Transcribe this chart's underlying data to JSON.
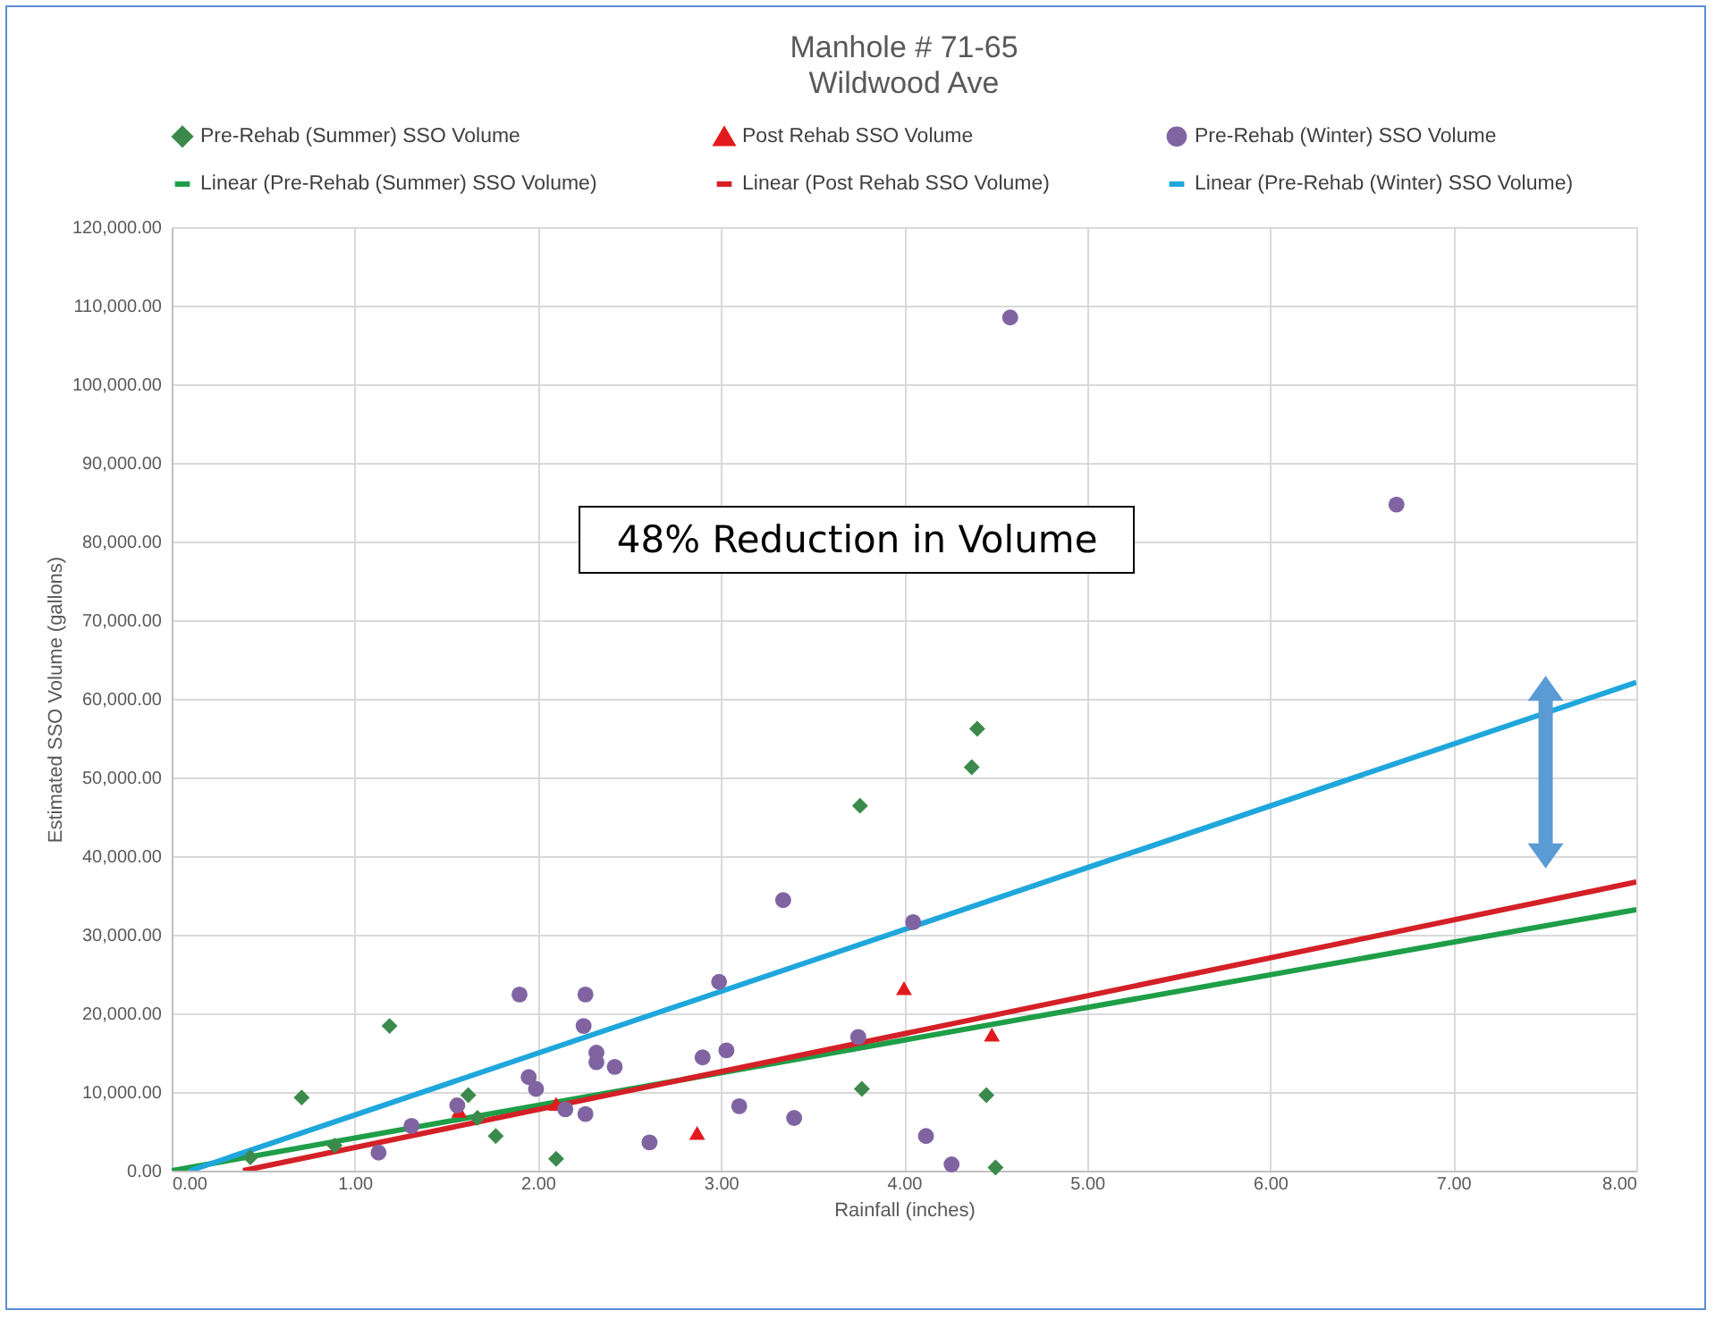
{
  "chart_data": {
    "type": "scatter",
    "title": "Manhole # 71-65",
    "subtitle": "Wildwood Ave",
    "xlabel": "Rainfall (inches)",
    "ylabel": "Estimated SSO Volume (gallons)",
    "xlim": [
      0,
      8
    ],
    "xticks": [
      {
        "value": 0,
        "label": "0.00"
      },
      {
        "value": 1,
        "label": "1.00"
      },
      {
        "value": 2,
        "label": "2.00"
      },
      {
        "value": 3,
        "label": "3.00"
      },
      {
        "value": 4,
        "label": "4.00"
      },
      {
        "value": 5,
        "label": "5.00"
      },
      {
        "value": 6,
        "label": "6.00"
      },
      {
        "value": 7,
        "label": "7.00"
      },
      {
        "value": 8,
        "label": "8.00"
      }
    ],
    "ylim": [
      0,
      120000
    ],
    "yticks": [
      {
        "value": 0,
        "label": "0.00"
      },
      {
        "value": 10000,
        "label": "10,000.00"
      },
      {
        "value": 20000,
        "label": "20,000.00"
      },
      {
        "value": 30000,
        "label": "30,000.00"
      },
      {
        "value": 40000,
        "label": "40,000.00"
      },
      {
        "value": 50000,
        "label": "50,000.00"
      },
      {
        "value": 60000,
        "label": "60,000.00"
      },
      {
        "value": 70000,
        "label": "70,000.00"
      },
      {
        "value": 80000,
        "label": "80,000.00"
      },
      {
        "value": 90000,
        "label": "90,000.00"
      },
      {
        "value": 100000,
        "label": "100,000.00"
      },
      {
        "value": 110000,
        "label": "110,000.00"
      },
      {
        "value": 120000,
        "label": "120,000.00"
      }
    ],
    "grid": true,
    "legend": "top",
    "annotations": [
      "48% Reduction in Volume"
    ],
    "series": [
      {
        "name": "Pre-Rehab (Summer) SSO Volume",
        "type": "scatter",
        "marker": "diamond",
        "color": "#3b8a4c",
        "x": [
          0.43,
          0.71,
          0.89,
          1.19,
          1.62,
          1.67,
          1.77,
          2.1,
          3.76,
          3.77,
          4.37,
          4.4,
          4.45,
          4.5
        ],
        "values": [
          1700,
          9300,
          3200,
          18400,
          9600,
          6700,
          4400,
          1500,
          46400,
          10400,
          51300,
          56200,
          9600,
          400
        ]
      },
      {
        "name": "Post Rehab SSO Volume",
        "type": "scatter",
        "marker": "triangle",
        "color": "#e31a1c",
        "x": [
          1.57,
          2.1,
          2.87,
          4.0,
          4.48
        ],
        "values": [
          7600,
          8500,
          4800,
          23200,
          17300
        ]
      },
      {
        "name": "Pre-Rehab (Winter) SSO Volume",
        "type": "scatter",
        "marker": "circle",
        "color": "#8064a2",
        "x": [
          1.13,
          1.31,
          1.56,
          1.9,
          1.95,
          1.99,
          2.15,
          2.25,
          2.26,
          2.26,
          2.32,
          2.32,
          2.42,
          2.61,
          2.9,
          2.99,
          3.03,
          3.1,
          3.34,
          3.4,
          3.75,
          4.05,
          4.12,
          4.26,
          4.58,
          6.69
        ],
        "values": [
          2300,
          5700,
          8300,
          22400,
          11900,
          10400,
          7800,
          18400,
          22400,
          7200,
          15000,
          13800,
          13200,
          3600,
          14400,
          24000,
          15300,
          8200,
          34400,
          6700,
          17000,
          31600,
          4400,
          800,
          108500,
          84700
        ]
      },
      {
        "name": "Linear (Pre-Rehab (Summer) SSO Volume)",
        "type": "line",
        "color": "#1f9e48",
        "x": [
          0,
          8
        ],
        "values": [
          0,
          33200
        ]
      },
      {
        "name": "Linear (Post Rehab SSO Volume)",
        "type": "line",
        "color": "#d42027",
        "x": [
          0.39,
          8
        ],
        "values": [
          0,
          36700
        ]
      },
      {
        "name": "Linear (Pre-Rehab (Winter) SSO Volume)",
        "type": "line",
        "color": "#1fa7dc",
        "x": [
          0.1,
          8
        ],
        "values": [
          0,
          62100
        ]
      }
    ]
  }
}
